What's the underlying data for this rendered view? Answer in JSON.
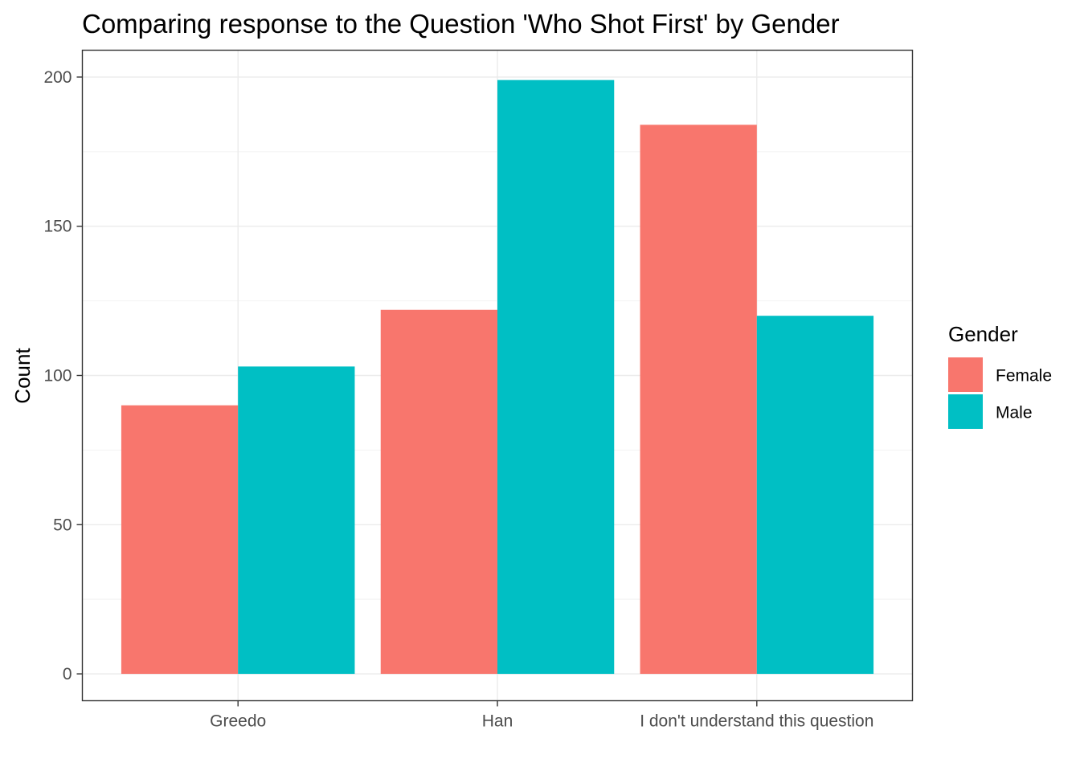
{
  "chart_data": {
    "type": "bar",
    "title": "Comparing response to the Question 'Who Shot First' by Gender",
    "xlabel": "",
    "ylabel": "Count",
    "categories": [
      "Greedo",
      "Han",
      "I don't understand this question"
    ],
    "series": [
      {
        "name": "Female",
        "values": [
          90,
          122,
          184
        ],
        "color": "#F8766D"
      },
      {
        "name": "Male",
        "values": [
          103,
          199,
          120
        ],
        "color": "#00BFC4"
      }
    ],
    "ylim": [
      -9,
      209
    ],
    "yticks": [
      0,
      50,
      100,
      150,
      200
    ],
    "ytick_labels": [
      "0",
      "50",
      "100",
      "150",
      "200"
    ],
    "grid": true,
    "legend": {
      "title": "Gender",
      "position": "right"
    }
  }
}
